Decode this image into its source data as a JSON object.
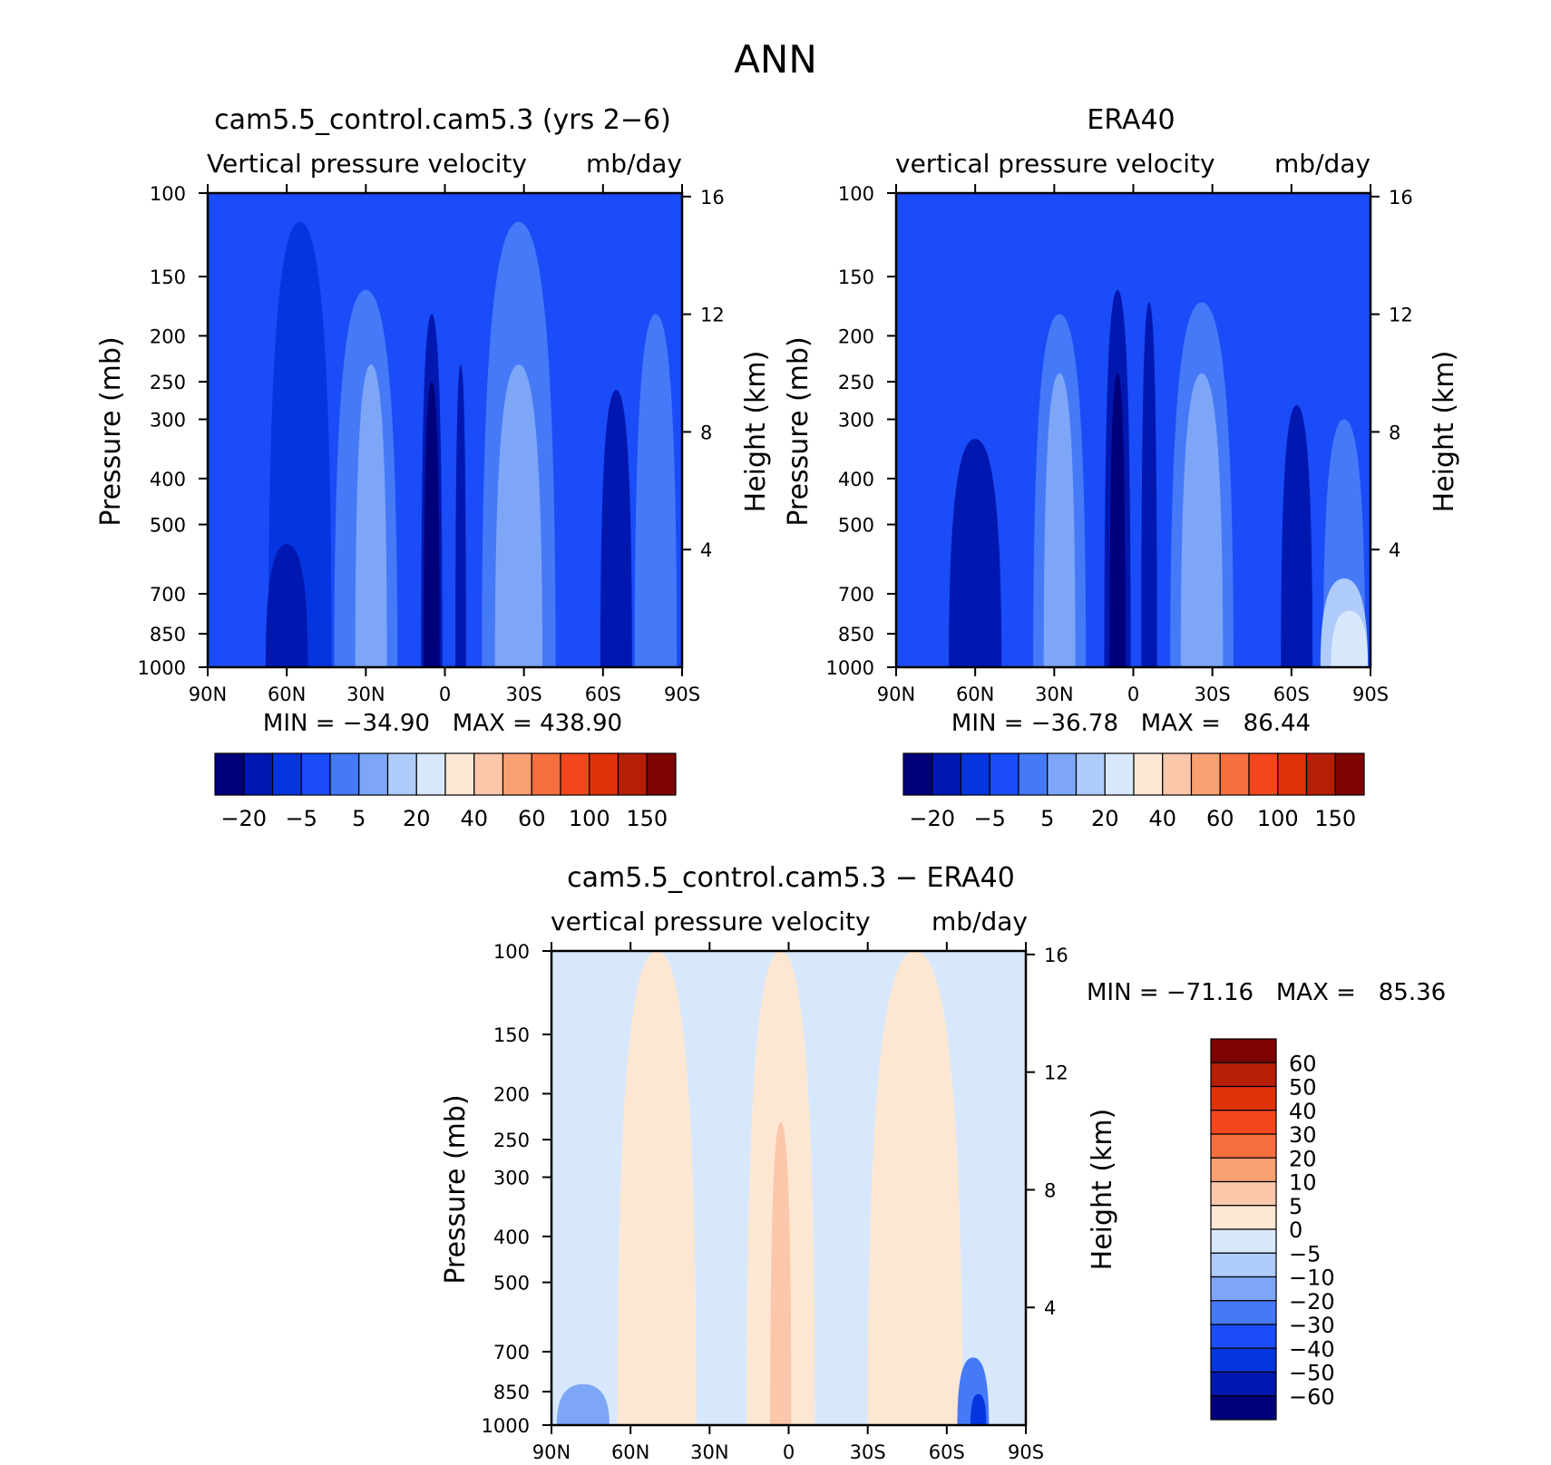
{
  "figure": {
    "title": "ANN"
  },
  "colors": {
    "full": [
      "#00007a",
      "#0018b0",
      "#0535df",
      "#1a4cf7",
      "#4679f7",
      "#7ea6f7",
      "#aecbf9",
      "#d8e8fc",
      "#fde7d3",
      "#fbc7ab",
      "#f9a073",
      "#f6703f",
      "#f2471c",
      "#e03209",
      "#b61e05",
      "#7e0404"
    ],
    "diff": [
      "#00007a",
      "#0018b0",
      "#0535df",
      "#1a4cf7",
      "#4679f7",
      "#7ea6f7",
      "#aecbf9",
      "#d8e8fc",
      "#fde7d3",
      "#fbc7ab",
      "#f9a073",
      "#f6703f",
      "#f2471c",
      "#e03209",
      "#b61e05",
      "#7e0404"
    ]
  },
  "chart_data": [
    {
      "type": "heatmap",
      "id": "model",
      "title": "cam5.5_control.cam5.3 (yrs 2−6)",
      "subtitle": "Vertical pressure velocity",
      "units": "mb/day",
      "ylabel": "Pressure (mb)",
      "y2label": "Height (km)",
      "xticks": [
        "90N",
        "60N",
        "30N",
        "0",
        "30S",
        "60S",
        "90S"
      ],
      "yticks": [
        100,
        150,
        200,
        250,
        300,
        400,
        500,
        700,
        850,
        1000
      ],
      "y2ticks": [
        16,
        12,
        8,
        4
      ],
      "ylim": [
        1000,
        100
      ],
      "xlim": [
        90,
        -90
      ],
      "stats": "MIN = −34.90   MAX = 438.90",
      "colorbar_labels": [
        "−20",
        "−5",
        "5",
        "20",
        "40",
        "60",
        "100",
        "150"
      ],
      "fields": [
        {
          "x": 55,
          "half_width": 12,
          "top_pressure": 115,
          "level": -1
        },
        {
          "x": 60,
          "half_width": 8,
          "top_pressure": 550,
          "level": -2
        },
        {
          "x": 30,
          "half_width": 12,
          "top_pressure": 160,
          "level": 1
        },
        {
          "x": 28,
          "half_width": 6,
          "top_pressure": 230,
          "level": 2
        },
        {
          "x": 5,
          "half_width": 4,
          "top_pressure": 180,
          "level": -2
        },
        {
          "x": 5,
          "half_width": 3,
          "top_pressure": 250,
          "level": -3
        },
        {
          "x": -6,
          "half_width": 2,
          "top_pressure": 230,
          "level": -2
        },
        {
          "x": -28,
          "half_width": 14,
          "top_pressure": 115,
          "level": 1
        },
        {
          "x": -28,
          "half_width": 9,
          "top_pressure": 230,
          "level": 2
        },
        {
          "x": -65,
          "half_width": 6,
          "top_pressure": 260,
          "level": -2
        },
        {
          "x": -80,
          "half_width": 8,
          "top_pressure": 180,
          "level": 1
        }
      ]
    },
    {
      "type": "heatmap",
      "id": "obs",
      "title": "ERA40",
      "subtitle": "vertical pressure velocity",
      "units": "mb/day",
      "ylabel": "Pressure (mb)",
      "y2label": "Height (km)",
      "xticks": [
        "90N",
        "60N",
        "30N",
        "0",
        "30S",
        "60S",
        "90S"
      ],
      "yticks": [
        100,
        150,
        200,
        250,
        300,
        400,
        500,
        700,
        850,
        1000
      ],
      "y2ticks": [
        16,
        12,
        8,
        4
      ],
      "ylim": [
        1000,
        100
      ],
      "xlim": [
        90,
        -90
      ],
      "stats": "MIN = −36.78   MAX =   86.44",
      "colorbar_labels": [
        "−20",
        "−5",
        "5",
        "20",
        "40",
        "60",
        "100",
        "150"
      ],
      "fields": [
        {
          "x": 60,
          "half_width": 10,
          "top_pressure": 330,
          "level": -2
        },
        {
          "x": 28,
          "half_width": 10,
          "top_pressure": 180,
          "level": 1
        },
        {
          "x": 28,
          "half_width": 6,
          "top_pressure": 240,
          "level": 2
        },
        {
          "x": 6,
          "half_width": 5,
          "top_pressure": 160,
          "level": -2
        },
        {
          "x": 6,
          "half_width": 3,
          "top_pressure": 240,
          "level": -3
        },
        {
          "x": -6,
          "half_width": 3,
          "top_pressure": 170,
          "level": -2
        },
        {
          "x": -26,
          "half_width": 12,
          "top_pressure": 170,
          "level": 1
        },
        {
          "x": -26,
          "half_width": 8,
          "top_pressure": 240,
          "level": 2
        },
        {
          "x": -62,
          "half_width": 6,
          "top_pressure": 280,
          "level": -2
        },
        {
          "x": -80,
          "half_width": 8,
          "top_pressure": 300,
          "level": 1
        },
        {
          "x": -80,
          "half_width": 9,
          "top_pressure": 650,
          "level": 3
        },
        {
          "x": -82,
          "half_width": 7,
          "top_pressure": 760,
          "level": 4
        }
      ]
    },
    {
      "type": "heatmap",
      "id": "diff",
      "title": "cam5.5_control.cam5.3 − ERA40",
      "subtitle": "vertical pressure velocity",
      "units": "mb/day",
      "ylabel": "Pressure (mb)",
      "y2label": "Height (km)",
      "xticks": [
        "90N",
        "60N",
        "30N",
        "0",
        "30S",
        "60S",
        "90S"
      ],
      "yticks": [
        100,
        150,
        200,
        250,
        300,
        400,
        500,
        700,
        850,
        1000
      ],
      "y2ticks": [
        16,
        12,
        8,
        4
      ],
      "ylim": [
        1000,
        100
      ],
      "xlim": [
        90,
        -90
      ],
      "stats": "MIN = −71.16   MAX =   85.36",
      "colorbar_labels": [
        "60",
        "50",
        "40",
        "30",
        "20",
        "10",
        "5",
        "0",
        "−5",
        "−10",
        "−20",
        "−30",
        "−40",
        "−50",
        "−60"
      ],
      "fields": [
        {
          "x": 50,
          "half_width": 15,
          "top_pressure": 100,
          "level": 1
        },
        {
          "x": 3,
          "half_width": 13,
          "top_pressure": 100,
          "level": 1
        },
        {
          "x": 3,
          "half_width": 4,
          "top_pressure": 230,
          "level": 2
        },
        {
          "x": -48,
          "half_width": 18,
          "top_pressure": 100,
          "level": 1
        },
        {
          "x": 78,
          "half_width": 10,
          "top_pressure": 820,
          "level": -2
        },
        {
          "x": -70,
          "half_width": 6,
          "top_pressure": 720,
          "level": -3
        },
        {
          "x": -72,
          "half_width": 3,
          "top_pressure": 860,
          "level": -5
        }
      ]
    }
  ]
}
